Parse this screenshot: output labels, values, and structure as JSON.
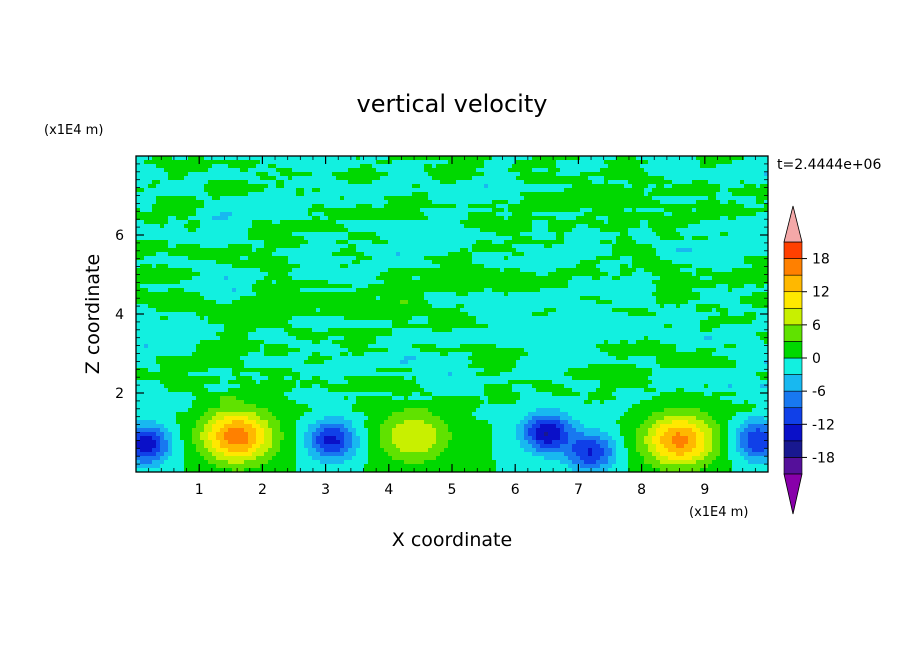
{
  "chart_data": {
    "type": "heatmap",
    "title": "vertical velocity",
    "xlabel": "X coordinate",
    "ylabel": "Z coordinate",
    "x_unit": "(x1E4 m)",
    "y_unit": "(x1E4 m)",
    "time_label": "t=2.4444e+06",
    "xlim": [
      0,
      10
    ],
    "ylim": [
      0,
      8
    ],
    "x_ticks": [
      "1",
      "2",
      "3",
      "4",
      "5",
      "6",
      "7",
      "8",
      "9"
    ],
    "y_ticks": [
      "2",
      "4",
      "6"
    ],
    "colorbar": {
      "range": [
        -21,
        21
      ],
      "levels": [
        -21,
        -18,
        -15,
        -12,
        -9,
        -6,
        -3,
        0,
        3,
        6,
        9,
        12,
        15,
        18,
        21
      ],
      "tick_labels": [
        "18",
        "12",
        "6",
        "0",
        "-6",
        "-12",
        "-18"
      ],
      "colors": [
        "#55109a",
        "#181890",
        "#0a10c8",
        "#1040e8",
        "#1878f0",
        "#18b8f0",
        "#12f0e0",
        "#00d800",
        "#60e200",
        "#c8f000",
        "#ffe800",
        "#ffb800",
        "#ff8000",
        "#ff4000",
        "#e01000"
      ],
      "over_color": "#f4a8a8",
      "under_color": "#8800aa"
    },
    "features": [
      {
        "kind": "updraft",
        "x": 1.6,
        "z": 0.9,
        "peak": 17
      },
      {
        "kind": "updraft",
        "x": 4.4,
        "z": 0.9,
        "peak": 9
      },
      {
        "kind": "updraft",
        "x": 8.6,
        "z": 0.8,
        "peak": 16
      },
      {
        "kind": "downdraft",
        "x": 0.15,
        "z": 0.7,
        "peak": -14
      },
      {
        "kind": "downdraft",
        "x": 3.1,
        "z": 0.8,
        "peak": -13
      },
      {
        "kind": "downdraft",
        "x": 6.5,
        "z": 1.0,
        "peak": -15
      },
      {
        "kind": "downdraft",
        "x": 7.2,
        "z": 0.5,
        "peak": -12
      },
      {
        "kind": "downdraft",
        "x": 9.85,
        "z": 0.8,
        "peak": -12
      }
    ],
    "upper_region_range": [
      -9,
      6
    ],
    "grid": false
  }
}
